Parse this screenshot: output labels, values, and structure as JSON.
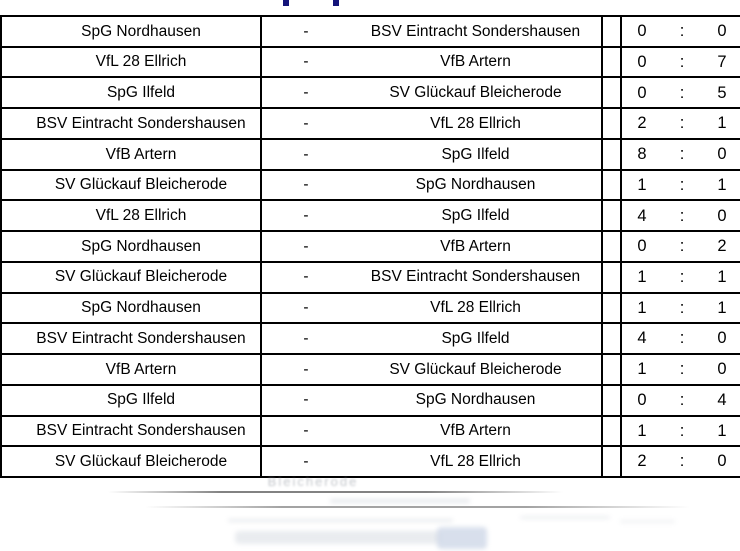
{
  "colors": {
    "table_border": "#000000",
    "text": "#000000",
    "title_accent": "#14147a",
    "ghost_gray": "#8a9099",
    "ghost_blue": "#b9c6dd"
  },
  "table": {
    "separator": "-",
    "score_separator": ":",
    "rows": [
      {
        "home": "SpG Nordhausen",
        "away": "BSV Eintracht Sondershausen",
        "home_score": "0",
        "away_score": "0"
      },
      {
        "home": "VfL 28 Ellrich",
        "away": "VfB Artern",
        "home_score": "0",
        "away_score": "7"
      },
      {
        "home": "SpG Ilfeld",
        "away": "SV Glückauf Bleicherode",
        "home_score": "0",
        "away_score": "5"
      },
      {
        "home": "BSV Eintracht Sondershausen",
        "away": "VfL 28 Ellrich",
        "home_score": "2",
        "away_score": "1"
      },
      {
        "home": "VfB Artern",
        "away": "SpG Ilfeld",
        "home_score": "8",
        "away_score": "0"
      },
      {
        "home": "SV Glückauf Bleicherode",
        "away": "SpG Nordhausen",
        "home_score": "1",
        "away_score": "1"
      },
      {
        "home": "VfL 28 Ellrich",
        "away": "SpG Ilfeld",
        "home_score": "4",
        "away_score": "0"
      },
      {
        "home": "SpG Nordhausen",
        "away": "VfB Artern",
        "home_score": "0",
        "away_score": "2"
      },
      {
        "home": "SV Glückauf Bleicherode",
        "away": "BSV Eintracht Sondershausen",
        "home_score": "1",
        "away_score": "1"
      },
      {
        "home": "SpG Nordhausen",
        "away": "VfL 28 Ellrich",
        "home_score": "1",
        "away_score": "1"
      },
      {
        "home": "BSV Eintracht Sondershausen",
        "away": "SpG Ilfeld",
        "home_score": "4",
        "away_score": "0"
      },
      {
        "home": "VfB Artern",
        "away": "SV Glückauf Bleicherode",
        "home_score": "1",
        "away_score": "0"
      },
      {
        "home": "SpG Ilfeld",
        "away": "SpG Nordhausen",
        "home_score": "0",
        "away_score": "4"
      },
      {
        "home": "BSV Eintracht Sondershausen",
        "away": "VfB Artern",
        "home_score": "1",
        "away_score": "1"
      },
      {
        "home": "SV Glückauf Bleicherode",
        "away": "VfL 28 Ellrich",
        "home_score": "2",
        "away_score": "0"
      }
    ]
  },
  "ghost": {
    "word": "Bleicherode"
  }
}
